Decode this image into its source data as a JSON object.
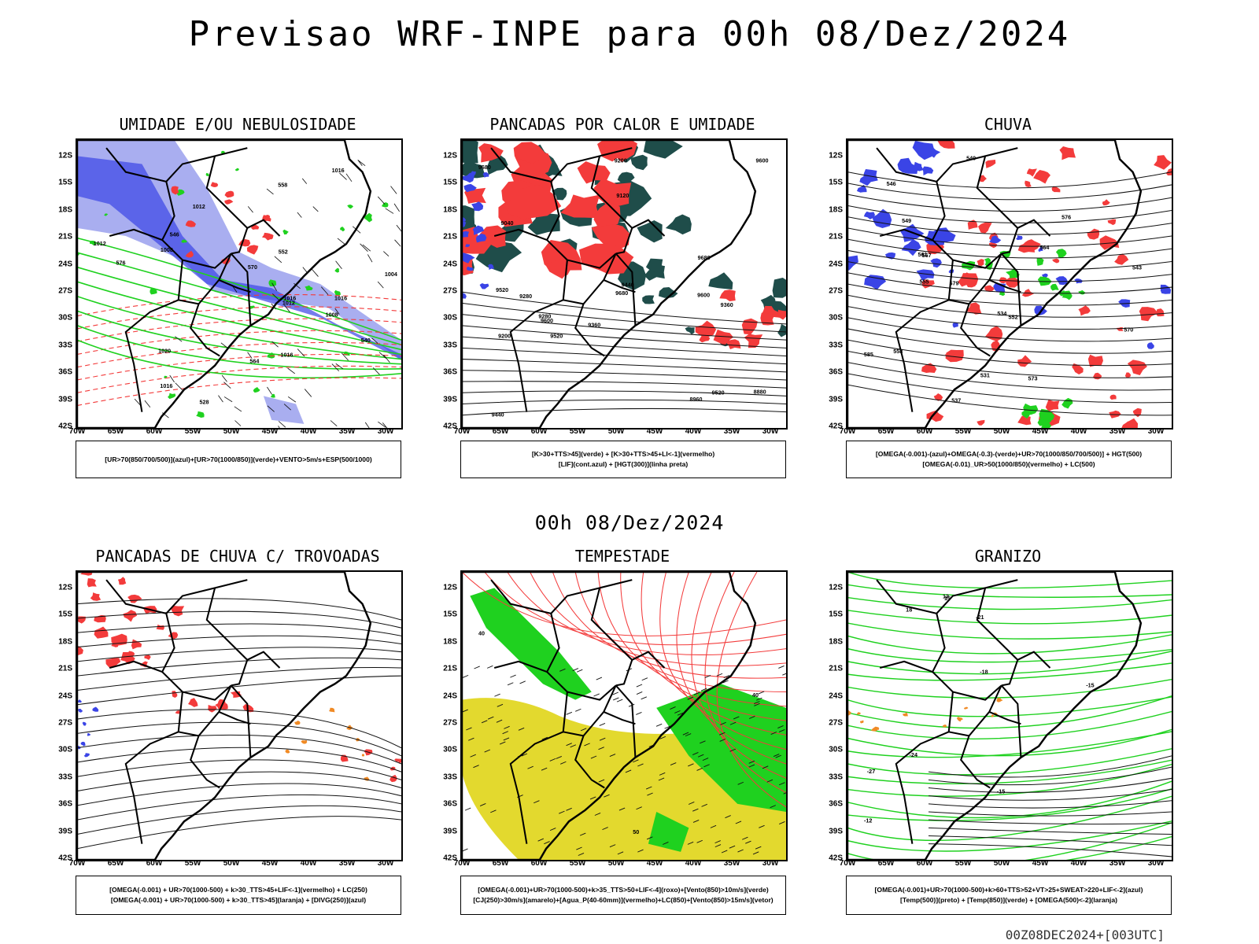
{
  "title": "Previsao WRF-INPE  para 00h 08/Dez/2024",
  "mid_title": "00h 08/Dez/2024",
  "timestamp": "00Z08DEC2024+[003UTC]",
  "lat_labels": [
    "12S",
    "15S",
    "18S",
    "21S",
    "24S",
    "27S",
    "30S",
    "33S",
    "36S",
    "39S",
    "42S"
  ],
  "lon_labels": [
    "70W",
    "65W",
    "60W",
    "55W",
    "50W",
    "45W",
    "40W",
    "35W",
    "30W"
  ],
  "panels": [
    {
      "id": "umidade",
      "title": "UMIDADE E/OU NEBULOSIDADE",
      "legend": [
        "[UR>70(850/700/500)](azul)+[UR>70(1000/850)](verde)+VENTO>5m/s+ESP(500/1000)"
      ],
      "labels": [
        "1012",
        "1012",
        "1016",
        "1012",
        "1008",
        "1016",
        "1004",
        "1008",
        "1016",
        "1020",
        "1016",
        "1016",
        "576",
        "570",
        "564",
        "558",
        "552",
        "546",
        "540",
        "528"
      ]
    },
    {
      "id": "pancadas-calor",
      "title": "PANCADAS POR CALOR E UMIDADE",
      "legend": [
        "[K>30+TTS>45](verde) + [K>30+TTS>45+LI<-1](vermelho)",
        "[LIF](cont.azul) + [HGT(300)](linha preta)"
      ],
      "labels": [
        "9680",
        "9680",
        "9680",
        "9600",
        "9520",
        "9600",
        "9520",
        "9440",
        "9360",
        "9280",
        "9200",
        "9120",
        "9040",
        "8960",
        "8880",
        "9200",
        "9440",
        "9360",
        "9280",
        "9520",
        "9600"
      ]
    },
    {
      "id": "chuva",
      "title": "CHUVA",
      "legend": [
        "[OMEGA(-0.001)-(azul)+OMEGA(-0.3)-(verde)+UR>70(1000/850/700/500)] + HGT(500)",
        "[OMEGA(-0.01)_UR>50(1000/850)(vermelho) + LC(500)"
      ],
      "labels": [
        "585",
        "579",
        "576",
        "573",
        "570",
        "567",
        "564",
        "561",
        "558",
        "555",
        "552",
        "549",
        "546",
        "543",
        "540",
        "537",
        "534",
        "531"
      ]
    },
    {
      "id": "pancadas-trovoadas",
      "title": "PANCADAS DE CHUVA C/ TROVOADAS",
      "legend": [
        "[OMEGA(-0.001) + UR>70(1000-500) + k>30_TTS>45+LIF<-1](vermelho) + LC(250)",
        "[OMEGA(-0.001) + UR>70(1000-500) + k>30_TTS>45](laranja) + [DIVG(250)](azul)"
      ],
      "labels": []
    },
    {
      "id": "tempestade",
      "title": "TEMPESTADE",
      "legend": [
        "[OMEGA(-0.001)+UR>70(1000-500)+k>35_TTS>50+LIF<-4](roxo)+[Vento(850)>10m/s](verde)",
        "[CJ(250)>30m/s](amarelo)+[Agua_P(40-60mm)](vermelho)+LC(850)+[Vento(850)>15m/s](vetor)"
      ],
      "labels": [
        "40",
        "40",
        "50"
      ]
    },
    {
      "id": "granizo",
      "title": "GRANIZO",
      "legend": [
        "[OMEGA(-0.001)+UR>70(1000-500)+k>60+TTS>52+VT>25+SWEAT>220+LIF<-2](azul)",
        "[Temp(500)](preto) + [Temp(850)](verde) + [OMEGA(500)<-2](laranja)"
      ],
      "labels": [
        "-12",
        "-15",
        "-15",
        "-18",
        "-21",
        "-24",
        "-27",
        "12",
        "15",
        "18"
      ]
    }
  ],
  "colors": {
    "blue": "#3a44e6",
    "lightblue": "#a9aef0",
    "green": "#1fd11f",
    "red": "#f33b3b",
    "orange": "#f08a25",
    "darkteal": "#1f4d4a",
    "yellow": "#e3d92e"
  }
}
